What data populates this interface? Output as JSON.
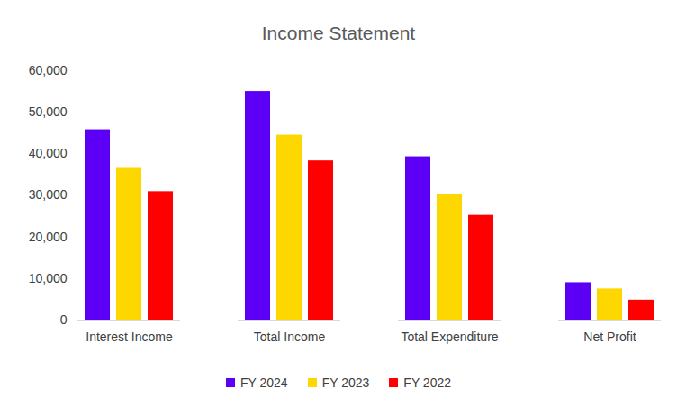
{
  "chart_data": {
    "type": "bar",
    "title": "Income Statement",
    "categories": [
      "Interest Income",
      "Total Income",
      "Total Expenditure",
      "Net Profit"
    ],
    "series": [
      {
        "name": "FY 2024",
        "color": "#5b00f5",
        "values": [
          45800,
          55000,
          39300,
          9000
        ]
      },
      {
        "name": "FY 2023",
        "color": "#ffd700",
        "values": [
          36500,
          44500,
          30200,
          7500
        ]
      },
      {
        "name": "FY 2022",
        "color": "#ff0000",
        "values": [
          30900,
          38300,
          25200,
          4800
        ]
      }
    ],
    "ylim": [
      0,
      60000
    ],
    "yticks": [
      0,
      {
        "value": 10000,
        "label": "10,000"
      },
      {
        "value": 20000,
        "label": "20,000"
      },
      {
        "value": 30000,
        "label": "30,000"
      },
      {
        "value": 40000,
        "label": "40,000"
      },
      {
        "value": 50000,
        "label": "50,000"
      },
      {
        "value": 60000,
        "label": "60,000"
      }
    ],
    "grid": false,
    "legend": "bottom"
  }
}
